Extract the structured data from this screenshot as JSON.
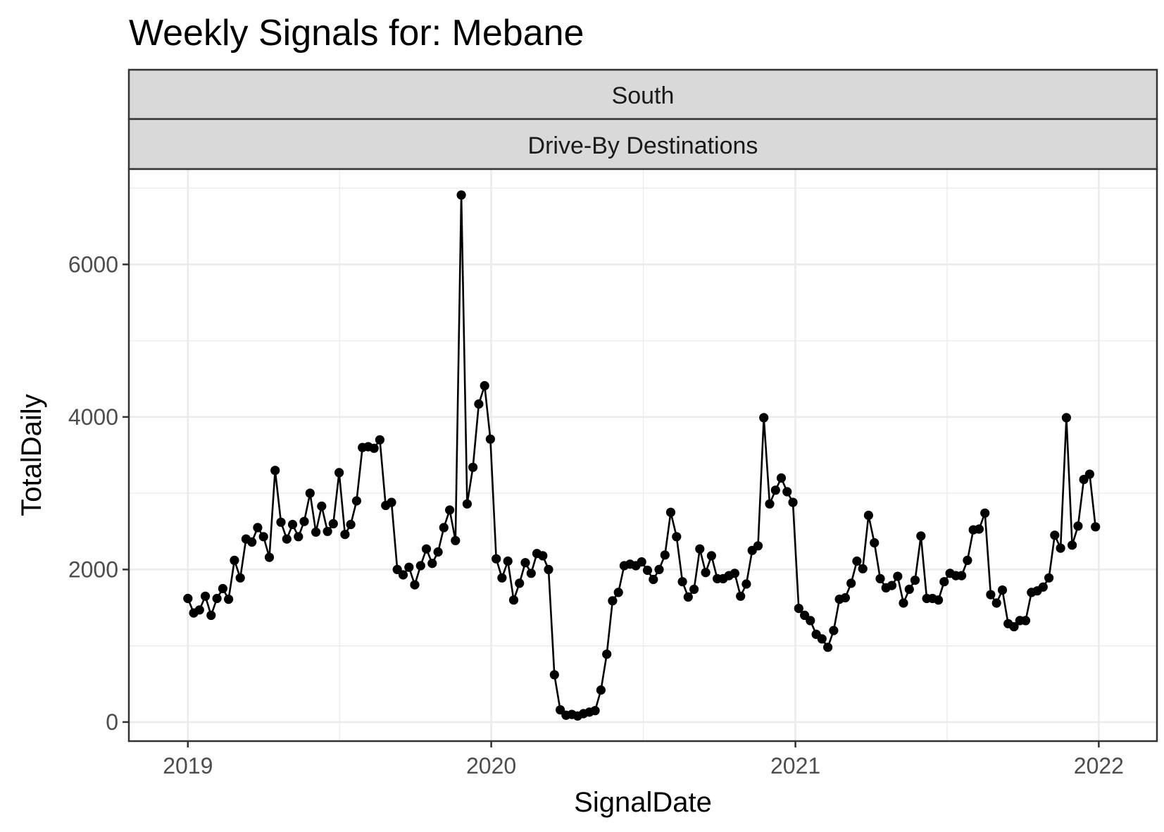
{
  "chart_data": {
    "type": "line",
    "title": "Weekly Signals for: Mebane",
    "facets": [
      "South",
      "Drive-By Destinations"
    ],
    "xlabel": "SignalDate",
    "ylabel": "TotalDaily",
    "x_ticks": [
      "2019",
      "2020",
      "2021",
      "2022"
    ],
    "y_ticks": [
      "0",
      "2000",
      "4000",
      "6000"
    ],
    "xlim": [
      "2018-10-22",
      "2022-03-12"
    ],
    "ylim": [
      -250,
      7250
    ],
    "grid": true,
    "legend": "none",
    "line_color": "#000000",
    "point_color": "#000000",
    "strip_fill": "#d9d9d9",
    "series": [
      {
        "x": [
          "2019-01-01",
          "2019-01-08",
          "2019-01-15",
          "2019-01-22",
          "2019-01-29",
          "2019-02-05",
          "2019-02-12",
          "2019-02-19",
          "2019-02-26",
          "2019-03-05",
          "2019-03-12",
          "2019-03-19",
          "2019-03-26",
          "2019-04-02",
          "2019-04-09",
          "2019-04-16",
          "2019-04-23",
          "2019-04-30",
          "2019-05-07",
          "2019-05-14",
          "2019-05-21",
          "2019-05-28",
          "2019-06-04",
          "2019-06-11",
          "2019-06-18",
          "2019-06-25",
          "2019-07-02",
          "2019-07-09",
          "2019-07-16",
          "2019-07-23",
          "2019-07-30",
          "2019-08-06",
          "2019-08-13",
          "2019-08-20",
          "2019-08-27",
          "2019-09-03",
          "2019-09-10",
          "2019-09-17",
          "2019-09-24",
          "2019-10-01",
          "2019-10-08",
          "2019-10-15",
          "2019-10-22",
          "2019-10-29",
          "2019-11-05",
          "2019-11-12",
          "2019-11-19",
          "2019-11-26",
          "2019-12-03",
          "2019-12-10",
          "2019-12-17",
          "2019-12-24",
          "2019-12-31",
          "2020-01-07",
          "2020-01-14",
          "2020-01-21",
          "2020-01-28",
          "2020-02-04",
          "2020-02-11",
          "2020-02-18",
          "2020-02-25",
          "2020-03-03",
          "2020-03-10",
          "2020-03-17",
          "2020-03-24",
          "2020-03-31",
          "2020-04-07",
          "2020-04-14",
          "2020-04-21",
          "2020-04-28",
          "2020-05-05",
          "2020-05-12",
          "2020-05-19",
          "2020-05-26",
          "2020-06-02",
          "2020-06-09",
          "2020-06-16",
          "2020-06-23",
          "2020-06-30",
          "2020-07-07",
          "2020-07-14",
          "2020-07-21",
          "2020-07-28",
          "2020-08-04",
          "2020-08-11",
          "2020-08-18",
          "2020-08-25",
          "2020-09-01",
          "2020-09-08",
          "2020-09-15",
          "2020-09-22",
          "2020-09-29",
          "2020-10-06",
          "2020-10-13",
          "2020-10-20",
          "2020-10-27",
          "2020-11-03",
          "2020-11-10",
          "2020-11-17",
          "2020-11-24",
          "2020-12-01",
          "2020-12-08",
          "2020-12-15",
          "2020-12-22",
          "2020-12-29",
          "2021-01-05",
          "2021-01-12",
          "2021-01-19",
          "2021-01-26",
          "2021-02-02",
          "2021-02-09",
          "2021-02-16",
          "2021-02-23",
          "2021-03-02",
          "2021-03-09",
          "2021-03-16",
          "2021-03-23",
          "2021-03-30",
          "2021-04-06",
          "2021-04-13",
          "2021-04-20",
          "2021-04-27",
          "2021-05-04",
          "2021-05-11",
          "2021-05-18",
          "2021-05-25",
          "2021-06-01",
          "2021-06-08",
          "2021-06-15",
          "2021-06-22",
          "2021-06-29",
          "2021-07-06",
          "2021-07-13",
          "2021-07-20",
          "2021-07-27",
          "2021-08-03",
          "2021-08-10",
          "2021-08-17",
          "2021-08-24",
          "2021-08-31",
          "2021-09-07",
          "2021-09-14",
          "2021-09-21",
          "2021-09-28",
          "2021-10-05",
          "2021-10-12",
          "2021-10-19",
          "2021-10-26",
          "2021-11-02",
          "2021-11-09",
          "2021-11-16",
          "2021-11-23",
          "2021-11-30",
          "2021-12-07",
          "2021-12-14",
          "2021-12-21",
          "2021-12-28"
        ],
        "values": [
          1620,
          1430,
          1470,
          1650,
          1400,
          1620,
          1750,
          1610,
          2120,
          1890,
          2400,
          2360,
          2550,
          2430,
          2160,
          3300,
          2620,
          2400,
          2590,
          2430,
          2630,
          3000,
          2490,
          2830,
          2500,
          2600,
          3270,
          2460,
          2590,
          2900,
          3600,
          3610,
          3590,
          3700,
          2840,
          2880,
          2000,
          1930,
          2030,
          1800,
          2050,
          2270,
          2080,
          2230,
          2550,
          2780,
          2380,
          6910,
          2860,
          3340,
          4170,
          4410,
          3710,
          2140,
          1890,
          2110,
          1600,
          1820,
          2090,
          1950,
          2210,
          2180,
          2000,
          620,
          160,
          90,
          100,
          80,
          110,
          130,
          150,
          420,
          890,
          1590,
          1700,
          2050,
          2070,
          2050,
          2100,
          1990,
          1870,
          2000,
          2190,
          2750,
          2430,
          1840,
          1640,
          1740,
          2270,
          1960,
          2180,
          1880,
          1880,
          1920,
          1950,
          1650,
          1810,
          2250,
          2310,
          3990,
          2860,
          3040,
          3200,
          3020,
          2880,
          1490,
          1400,
          1330,
          1150,
          1090,
          980,
          1200,
          1610,
          1630,
          1820,
          2110,
          2010,
          2710,
          2350,
          1880,
          1760,
          1790,
          1910,
          1560,
          1740,
          1860,
          2440,
          1620,
          1620,
          1600,
          1840,
          1950,
          1920,
          1920,
          2120,
          2520,
          2530,
          2740,
          1670,
          1560,
          1730,
          1290,
          1250,
          1330,
          1330,
          1700,
          1720,
          1770,
          1890,
          2450,
          2280,
          3990,
          2320,
          2570,
          3180,
          3250,
          2560
        ]
      }
    ]
  }
}
